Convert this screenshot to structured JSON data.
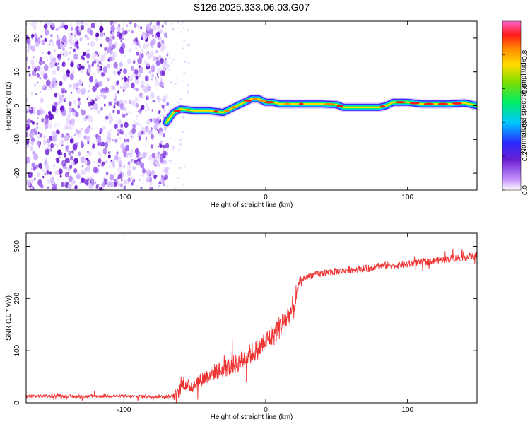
{
  "title": "S126.2025.333.06.03.G07",
  "chart_data": [
    {
      "type": "heatmap",
      "xlabel": "Height of straight line (km)",
      "ylabel": "Frequency (Hz)",
      "xlim": [
        -169,
        149
      ],
      "ylim": [
        -25,
        25
      ],
      "xticks": [
        -100,
        0,
        100
      ],
      "yticks": [
        -20,
        -10,
        0,
        10,
        20
      ],
      "noise_region_x": [
        -169,
        -69
      ],
      "ridge": {
        "x": [
          -70,
          -65,
          -60,
          -50,
          -40,
          -30,
          -25,
          -20,
          -15,
          -10,
          -5,
          0,
          5,
          10,
          20,
          30,
          40,
          50,
          55,
          60,
          70,
          80,
          85,
          90,
          100,
          110,
          120,
          130,
          140,
          149
        ],
        "y": [
          -5,
          -2,
          -1,
          -1.5,
          -1.5,
          -2,
          -1,
          0,
          1,
          2,
          2,
          1,
          1,
          0.5,
          0.5,
          0.5,
          0.5,
          0.3,
          -0.5,
          -0.5,
          -0.5,
          -0.5,
          0,
          1,
          1,
          0.5,
          0.5,
          0.5,
          0.8,
          0
        ]
      },
      "colorbar": {
        "label": "Normalized spectral amplitude",
        "ticks": [
          "0.0",
          "0.2",
          "0.4",
          "0.6",
          "0.8"
        ]
      }
    },
    {
      "type": "line",
      "xlabel": "Height of straight line (km)",
      "ylabel": "SNR (10 * v/v)",
      "xlim": [
        -169,
        149
      ],
      "ylim": [
        0,
        325
      ],
      "xticks": [
        -100,
        0,
        100
      ],
      "yticks": [
        0,
        100,
        200,
        300
      ],
      "color": "#ee3333",
      "series": [
        {
          "name": "SNR",
          "x": [
            -169,
            -150,
            -130,
            -110,
            -90,
            -70,
            -62,
            -58,
            -55,
            -50,
            -45,
            -40,
            -35,
            -30,
            -25,
            -20,
            -15,
            -10,
            -5,
            0,
            5,
            10,
            15,
            20,
            22,
            24,
            30,
            40,
            50,
            60,
            70,
            75,
            78,
            80,
            90,
            100,
            110,
            120,
            130,
            140,
            149
          ],
          "y": [
            12,
            13,
            12,
            13,
            12,
            12,
            15,
            40,
            30,
            35,
            45,
            55,
            60,
            65,
            70,
            75,
            85,
            95,
            105,
            118,
            130,
            145,
            162,
            185,
            210,
            235,
            243,
            248,
            252,
            255,
            257,
            258,
            265,
            262,
            264,
            265,
            270,
            272,
            276,
            279,
            282
          ]
        }
      ]
    }
  ]
}
